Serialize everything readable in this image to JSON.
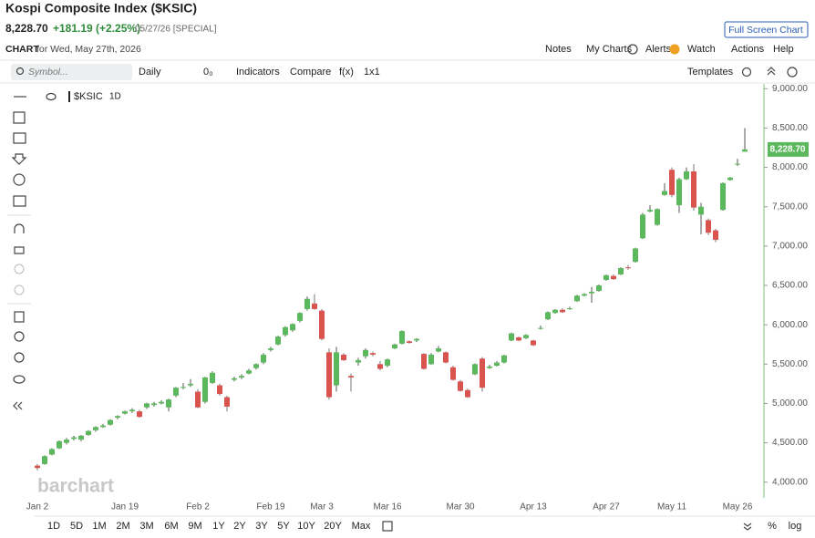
{
  "header": {
    "title": "Kospi Composite Index ($KSIC)",
    "price": "8,228.70",
    "change": "+181.19 (+2.25%)",
    "date_note": "05/27/26 [SPECIAL]",
    "button": "Full Screen Chart"
  },
  "nav": {
    "chart_label": "CHART",
    "chart_date": "for Wed, May 27th, 2026",
    "links": [
      "Notes",
      "My Charts",
      "Alerts",
      "Watch",
      "Actions",
      "Help"
    ]
  },
  "toolbar": {
    "symbol_placeholder": "Symbol...",
    "items": [
      "Daily",
      "0₀",
      "Indicators",
      "Compare",
      "f(x)",
      "1x1"
    ],
    "templates": "Templates"
  },
  "chart_data": {
    "type": "candlestick",
    "legend": "$KSIC",
    "interval": "1D",
    "watermark": "barchart",
    "up_color": "#5cb85c",
    "down_color": "#d9534f",
    "categories": [
      "Jan 2",
      null,
      null,
      null,
      null,
      null,
      null,
      null,
      null,
      null,
      null,
      null,
      "Jan 19",
      null,
      null,
      null,
      null,
      null,
      null,
      null,
      null,
      null,
      "Feb 2",
      null,
      null,
      null,
      null,
      null,
      null,
      null,
      null,
      null,
      "Feb 19",
      null,
      null,
      null,
      null,
      null,
      null,
      "Mar 3",
      null,
      null,
      null,
      null,
      null,
      null,
      null,
      null,
      "Mar 16",
      null,
      null,
      null,
      null,
      null,
      null,
      null,
      null,
      null,
      "Mar 30",
      null,
      null,
      null,
      null,
      null,
      null,
      null,
      null,
      null,
      "Apr 13",
      null,
      null,
      null,
      null,
      null,
      null,
      null,
      null,
      null,
      "Apr 27",
      null,
      null,
      null,
      null,
      null,
      null,
      null,
      null,
      "May 11",
      null,
      null,
      null,
      null,
      null,
      null,
      null,
      null,
      "May 26",
      null
    ],
    "open": [
      4210,
      4230,
      4350,
      4430,
      4500,
      4550,
      4540,
      4600,
      4660,
      4700,
      4730,
      4820,
      4870,
      4900,
      4900,
      4950,
      4980,
      5000,
      4950,
      5100,
      5200,
      5230,
      5150,
      5020,
      5260,
      5230,
      5080,
      5300,
      5330,
      5380,
      5450,
      5520,
      5680,
      5750,
      5870,
      5930,
      6050,
      6200,
      6270,
      6180,
      5650,
      5230,
      5620,
      5350,
      5520,
      5600,
      5640,
      5500,
      5480,
      5700,
      5760,
      5790,
      5800,
      5630,
      5500,
      5660,
      5650,
      5460,
      5280,
      5170,
      5370,
      5570,
      5450,
      5480,
      5520,
      5800,
      5840,
      5830,
      5800,
      5950,
      6070,
      6150,
      6190,
      6200,
      6300,
      6370,
      6400,
      6430,
      6570,
      6620,
      6640,
      6730,
      6800,
      7100,
      7440,
      7270,
      7650,
      7970,
      7520,
      7850,
      7950,
      7400,
      7330,
      7200,
      7460,
      7840,
      8040,
      8200
    ],
    "high": [
      4230,
      4340,
      4430,
      4530,
      4560,
      4590,
      4600,
      4660,
      4710,
      4740,
      4800,
      4850,
      4910,
      4940,
      4920,
      5010,
      5020,
      5040,
      5060,
      5210,
      5260,
      5310,
      5180,
      5340,
      5410,
      5250,
      5100,
      5340,
      5370,
      5440,
      5510,
      5640,
      5720,
      5860,
      5980,
      6020,
      6160,
      6360,
      6390,
      6200,
      5700,
      5720,
      5640,
      5380,
      5580,
      5700,
      5660,
      5540,
      5570,
      5760,
      5930,
      5800,
      5830,
      5640,
      5640,
      5730,
      5660,
      5480,
      5300,
      5190,
      5510,
      5590,
      5490,
      5540,
      5620,
      5900,
      5850,
      5880,
      5810,
      5990,
      6170,
      6200,
      6210,
      6230,
      6380,
      6400,
      6480,
      6510,
      6640,
      6640,
      6730,
      6760,
      6980,
      7420,
      7520,
      7480,
      7800,
      8000,
      7870,
      8000,
      8040,
      7550,
      7350,
      7220,
      7810,
      7880,
      8110,
      8500
    ],
    "low": [
      4150,
      4220,
      4340,
      4420,
      4480,
      4530,
      4520,
      4590,
      4640,
      4690,
      4720,
      4800,
      4860,
      4880,
      4820,
      4930,
      4960,
      4990,
      4900,
      5080,
      5180,
      5210,
      4940,
      5000,
      5250,
      5100,
      4900,
      5280,
      5310,
      5370,
      5430,
      5500,
      5660,
      5740,
      5850,
      5910,
      6030,
      6180,
      6190,
      5800,
      5050,
      5150,
      5540,
      5150,
      5480,
      5570,
      5600,
      5420,
      5460,
      5690,
      5750,
      5760,
      5780,
      5430,
      5490,
      5650,
      5510,
      5290,
      5150,
      5070,
      5360,
      5150,
      5440,
      5470,
      5510,
      5790,
      5790,
      5820,
      5730,
      5940,
      6060,
      6140,
      6150,
      6190,
      6290,
      6360,
      6280,
      6420,
      6560,
      6570,
      6630,
      6700,
      6790,
      7090,
      7430,
      7260,
      7640,
      7620,
      7420,
      7840,
      7450,
      7150,
      7140,
      7050,
      7450,
      7830,
      8020,
      8200
    ],
    "close": [
      4180,
      4330,
      4420,
      4520,
      4540,
      4570,
      4590,
      4650,
      4700,
      4720,
      4790,
      4840,
      4900,
      4920,
      4830,
      5000,
      5000,
      5020,
      5050,
      5200,
      5210,
      5250,
      4950,
      5330,
      5390,
      5120,
      4960,
      5320,
      5350,
      5420,
      5500,
      5620,
      5700,
      5850,
      5970,
      6010,
      6150,
      6330,
      6200,
      5820,
      5080,
      5650,
      5550,
      5330,
      5550,
      5680,
      5620,
      5440,
      5560,
      5750,
      5920,
      5770,
      5820,
      5440,
      5620,
      5700,
      5520,
      5300,
      5160,
      5080,
      5500,
      5200,
      5470,
      5520,
      5610,
      5890,
      5800,
      5870,
      5740,
      5960,
      6160,
      6190,
      6160,
      6210,
      6370,
      6390,
      6420,
      6500,
      6630,
      6580,
      6720,
      6720,
      6970,
      7400,
      7460,
      7470,
      7700,
      7650,
      7850,
      7950,
      7490,
      7500,
      7170,
      7080,
      7800,
      7870,
      8047.51,
      8228.7
    ],
    "ylim": [
      3800,
      9050
    ],
    "yticks": [
      {
        "value": 4000,
        "label": "4,000.00"
      },
      {
        "value": 4500,
        "label": "4,500.00"
      },
      {
        "value": 5000,
        "label": "5,000.00"
      },
      {
        "value": 5500,
        "label": "5,500.00"
      },
      {
        "value": 6000,
        "label": "6,000.00"
      },
      {
        "value": 6500,
        "label": "6,500.00"
      },
      {
        "value": 7000,
        "label": "7,000.00"
      },
      {
        "value": 7500,
        "label": "7,500.00"
      },
      {
        "value": 8000,
        "label": "8,000.00"
      },
      {
        "value": 8500,
        "label": "8,500.00"
      },
      {
        "value": 9000,
        "label": "9,000.00"
      }
    ],
    "last_label": "8,228.70"
  },
  "range_buttons": [
    "1D",
    "5D",
    "1M",
    "2M",
    "3M",
    "6M",
    "9M",
    "1Y",
    "2Y",
    "3Y",
    "5Y",
    "10Y",
    "20Y",
    "Max"
  ],
  "scale_buttons": [
    "%",
    "log"
  ]
}
